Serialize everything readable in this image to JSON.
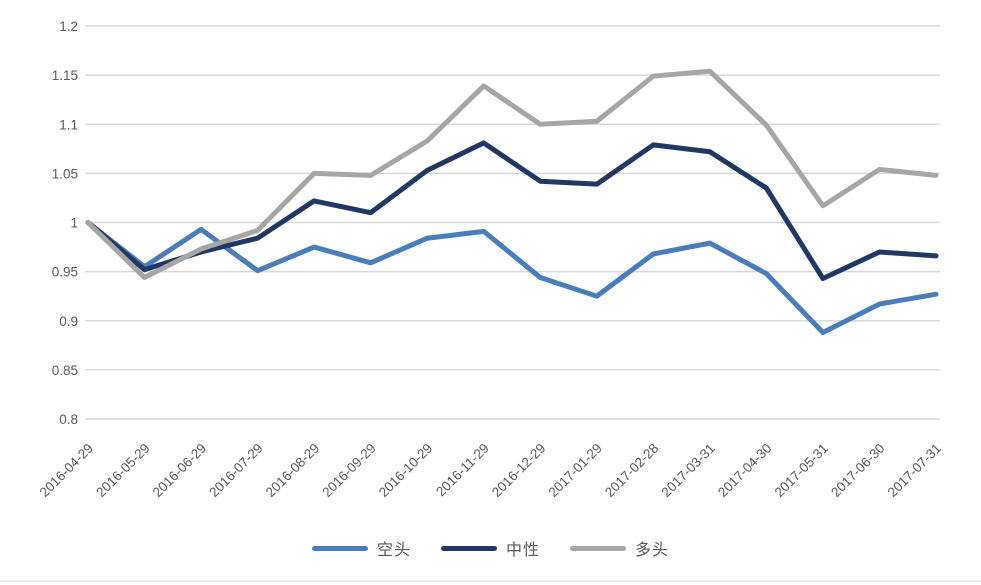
{
  "chart_data": {
    "type": "line",
    "title": "",
    "xlabel": "",
    "ylabel": "",
    "grid": "horizontal",
    "legend_position": "bottom",
    "axis_label_color": "#595959",
    "gridline_color": "#d9d9d9",
    "ylim": [
      0.8,
      1.2
    ],
    "yticks": [
      1.2,
      1.15,
      1.1,
      1.05,
      1.0,
      0.95,
      0.9,
      0.85,
      0.8
    ],
    "ytick_labels": [
      "1.2",
      "1.15",
      "1.1",
      "1.05",
      "1",
      "0.95",
      "0.9",
      "0.85",
      "0.8"
    ],
    "categories": [
      "2016-04-29",
      "2016-05-29",
      "2016-06-29",
      "2016-07-29",
      "2016-08-29",
      "2016-09-29",
      "2016-10-29",
      "2016-11-29",
      "2016-12-29",
      "2017-01-29",
      "2017-02-28",
      "2017-03-31",
      "2017-04-30",
      "2017-05-31",
      "2017-06-30",
      "2017-07-31"
    ],
    "series": [
      {
        "name": "空头",
        "color": "#4a7ebb",
        "values": [
          1.0,
          0.955,
          0.993,
          0.951,
          0.975,
          0.959,
          0.984,
          0.991,
          0.944,
          0.925,
          0.968,
          0.979,
          0.948,
          0.888,
          0.917,
          0.927
        ]
      },
      {
        "name": "中性",
        "color": "#1f3864",
        "values": [
          1.0,
          0.952,
          0.97,
          0.984,
          1.022,
          1.01,
          1.053,
          1.081,
          1.042,
          1.039,
          1.079,
          1.072,
          1.035,
          0.943,
          0.97,
          0.966
        ]
      },
      {
        "name": "多头",
        "color": "#a6a6a6",
        "values": [
          1.0,
          0.944,
          0.973,
          0.992,
          1.05,
          1.048,
          1.083,
          1.139,
          1.1,
          1.103,
          1.149,
          1.154,
          1.099,
          1.017,
          1.054,
          1.048
        ]
      }
    ]
  }
}
